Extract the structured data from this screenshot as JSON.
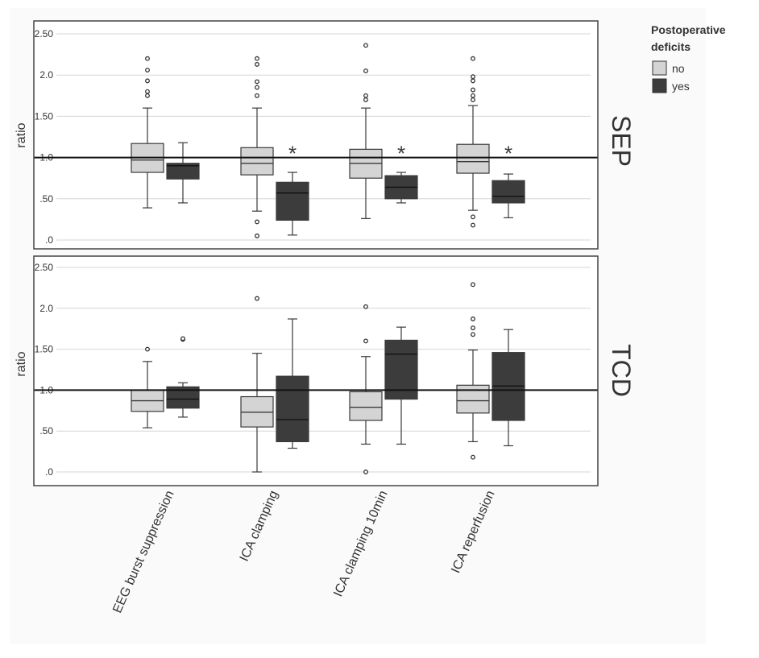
{
  "chart_data": {
    "type": "boxplot",
    "categories": [
      "EEG burst suppression",
      "ICA clamping",
      "ICA clamping 10min",
      "ICA reperfusion"
    ],
    "legend": {
      "title_line1": "Postoperative",
      "title_line2": "deficits",
      "entries": [
        {
          "label": "no",
          "color": "#d4d4d4"
        },
        {
          "label": "yes",
          "color": "#3c3c3c"
        }
      ],
      "placement": "top-right"
    },
    "reference_line": 1.0,
    "panels": [
      {
        "name": "SEP",
        "ylabel": "ratio",
        "ylim": [
          0,
          2.5
        ],
        "ticks": [
          {
            "value": 0,
            "label": ".0"
          },
          {
            "value": 0.5,
            "label": ".50"
          },
          {
            "value": 1.0,
            "label": "1.0"
          },
          {
            "value": 1.5,
            "label": "1.50"
          },
          {
            "value": 2.0,
            "label": "2.0"
          },
          {
            "value": 2.5,
            "label": "2.50"
          }
        ],
        "groups": [
          {
            "no": {
              "min": 0.39,
              "q1": 0.82,
              "median": 0.97,
              "q3": 1.17,
              "max": 1.6,
              "outliers": [
                1.75,
                1.8,
                1.93,
                2.06,
                2.2
              ]
            },
            "yes": {
              "min": 0.45,
              "q1": 0.74,
              "median": 0.9,
              "q3": 0.93,
              "max": 1.18,
              "outliers": []
            },
            "significant": false
          },
          {
            "no": {
              "min": 0.35,
              "q1": 0.79,
              "median": 0.93,
              "q3": 1.12,
              "max": 1.6,
              "outliers": [
                0.05,
                0.22,
                1.75,
                1.85,
                1.92,
                2.13,
                2.2
              ]
            },
            "yes": {
              "min": 0.06,
              "q1": 0.24,
              "median": 0.57,
              "q3": 0.7,
              "max": 0.82,
              "outliers": []
            },
            "significant": true
          },
          {
            "no": {
              "min": 0.26,
              "q1": 0.75,
              "median": 0.93,
              "q3": 1.1,
              "max": 1.6,
              "outliers": [
                1.7,
                1.75,
                2.05,
                2.36
              ]
            },
            "yes": {
              "min": 0.45,
              "q1": 0.5,
              "median": 0.64,
              "q3": 0.78,
              "max": 0.82,
              "outliers": []
            },
            "significant": true
          },
          {
            "no": {
              "min": 0.36,
              "q1": 0.81,
              "median": 0.95,
              "q3": 1.16,
              "max": 1.63,
              "outliers": [
                0.18,
                0.28,
                1.7,
                1.75,
                1.82,
                1.93,
                1.98,
                2.2
              ]
            },
            "yes": {
              "min": 0.27,
              "q1": 0.45,
              "median": 0.53,
              "q3": 0.72,
              "max": 0.8,
              "outliers": []
            },
            "significant": true
          }
        ]
      },
      {
        "name": "TCD",
        "ylabel": "ratio",
        "ylim": [
          0,
          2.5
        ],
        "ticks": [
          {
            "value": 0,
            "label": ".0"
          },
          {
            "value": 0.5,
            "label": ".50"
          },
          {
            "value": 1.0,
            "label": "1.0"
          },
          {
            "value": 1.5,
            "label": "1.50"
          },
          {
            "value": 2.0,
            "label": "2.0"
          },
          {
            "value": 2.5,
            "label": "2.50"
          }
        ],
        "groups": [
          {
            "no": {
              "min": 0.54,
              "q1": 0.74,
              "median": 0.87,
              "q3": 1.0,
              "max": 1.35,
              "outliers": [
                1.5
              ]
            },
            "yes": {
              "min": 0.67,
              "q1": 0.78,
              "median": 0.89,
              "q3": 1.04,
              "max": 1.09,
              "outliers": [
                1.62,
                1.63
              ]
            },
            "significant": false
          },
          {
            "no": {
              "min": 0.0,
              "q1": 0.55,
              "median": 0.73,
              "q3": 0.92,
              "max": 1.45,
              "outliers": [
                2.12
              ]
            },
            "yes": {
              "min": 0.29,
              "q1": 0.37,
              "median": 0.64,
              "q3": 1.17,
              "max": 1.87,
              "outliers": []
            },
            "significant": false
          },
          {
            "no": {
              "min": 0.34,
              "q1": 0.63,
              "median": 0.79,
              "q3": 0.98,
              "max": 1.41,
              "outliers": [
                0.0,
                1.6,
                2.02
              ]
            },
            "yes": {
              "min": 0.34,
              "q1": 0.89,
              "median": 1.44,
              "q3": 1.61,
              "max": 1.77,
              "outliers": []
            },
            "significant": false
          },
          {
            "no": {
              "min": 0.37,
              "q1": 0.72,
              "median": 0.87,
              "q3": 1.06,
              "max": 1.49,
              "outliers": [
                0.18,
                1.68,
                1.76,
                1.87,
                2.29
              ]
            },
            "yes": {
              "min": 0.32,
              "q1": 0.63,
              "median": 1.05,
              "q3": 1.46,
              "max": 1.74,
              "outliers": []
            },
            "significant": false
          }
        ]
      }
    ]
  },
  "significance_symbol": "*",
  "colors": {
    "no_fill": "#d4d4d4",
    "yes_fill": "#3c3c3c",
    "stroke": "#3a3a3a",
    "gridline": "#d6d6d6",
    "reference": "#111111",
    "panel_border": "#444444",
    "text": "#333333"
  }
}
